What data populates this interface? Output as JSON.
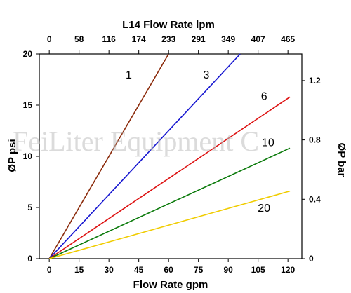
{
  "chart_data": {
    "type": "line",
    "x_bottom": {
      "label": "Flow Rate gpm",
      "ticks": [
        "0",
        "15",
        "30",
        "45",
        "60",
        "75",
        "90",
        "105",
        "120"
      ],
      "tick_values": [
        0,
        15,
        30,
        45,
        60,
        75,
        90,
        105,
        120
      ],
      "range": [
        -5,
        127
      ]
    },
    "x_top": {
      "label": "L14  Flow Rate lpm",
      "ticks": [
        "0",
        "58",
        "116",
        "174",
        "233",
        "291",
        "349",
        "407",
        "465"
      ]
    },
    "y_left": {
      "label": "ØP psi",
      "ticks": [
        "0",
        "5",
        "10",
        "15",
        "20"
      ],
      "tick_values": [
        0,
        5,
        10,
        15,
        20
      ],
      "range": [
        0,
        20
      ]
    },
    "y_right": {
      "label": "ØP bar",
      "ticks": [
        "0",
        "0.4",
        "0.8",
        "1.2"
      ],
      "tick_values": [
        0,
        0.4,
        0.8,
        1.2
      ],
      "range": [
        0,
        1.379
      ]
    },
    "series": [
      {
        "name": "1",
        "color": "#8b2a0a",
        "x": [
          0,
          60
        ],
        "y": [
          0,
          20
        ],
        "label_at": [
          40,
          17.6
        ]
      },
      {
        "name": "3",
        "color": "#1515d0",
        "x": [
          0,
          96
        ],
        "y": [
          0,
          20
        ],
        "label_at": [
          79,
          17.6
        ]
      },
      {
        "name": "6",
        "color": "#dd1111",
        "x": [
          0,
          121
        ],
        "y": [
          0,
          15.8
        ],
        "label_at": [
          108,
          15.5
        ]
      },
      {
        "name": "10",
        "color": "#0a7a0a",
        "x": [
          0,
          121
        ],
        "y": [
          0,
          10.8
        ],
        "label_at": [
          110,
          11.0
        ]
      },
      {
        "name": "20",
        "color": "#f0cc00",
        "x": [
          0,
          121
        ],
        "y": [
          0,
          6.6
        ],
        "label_at": [
          108,
          4.6
        ]
      }
    ],
    "watermark": "FeiLiter Equipment C",
    "grid": false,
    "legend": "inline labels"
  }
}
